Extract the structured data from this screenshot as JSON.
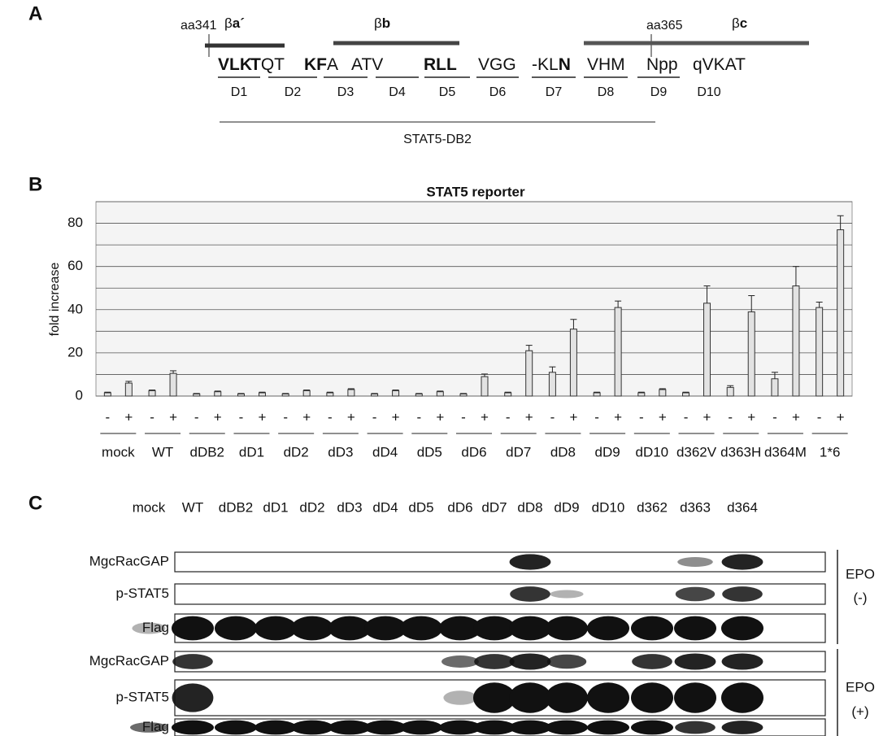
{
  "panel_a": {
    "label": "A",
    "start_marker": "aa341",
    "end_marker": "aa365",
    "strands": [
      {
        "greek": "β",
        "name": "a´"
      },
      {
        "greek": "β",
        "name": "b"
      },
      {
        "greek": "β",
        "name": "c"
      }
    ],
    "sequence": [
      {
        "segments": [
          {
            "text": "VLK",
            "bold": true
          }
        ]
      },
      {
        "segments": [
          {
            "text": "T",
            "bold": true
          },
          {
            "text": "QT",
            "bold": false
          }
        ]
      },
      {
        "segments": [
          {
            "text": "KF",
            "bold": true
          },
          {
            "text": "A",
            "bold": false
          }
        ]
      },
      {
        "segments": [
          {
            "text": "ATV",
            "bold": false
          }
        ]
      },
      {
        "segments": [
          {
            "text": "RLL",
            "bold": true
          }
        ]
      },
      {
        "segments": [
          {
            "text": "VGG",
            "bold": false
          }
        ]
      },
      {
        "segments": [
          {
            "text": "-KL",
            "bold": false
          },
          {
            "text": "N",
            "bold": true
          }
        ]
      },
      {
        "segments": [
          {
            "text": "VHM",
            "bold": false
          }
        ]
      },
      {
        "segments": [
          {
            "text": "Npp",
            "bold": false
          }
        ]
      },
      {
        "segments": [
          {
            "text": "qVKAT",
            "bold": false
          }
        ]
      }
    ],
    "domains": [
      "D1",
      "D2",
      "D3",
      "D4",
      "D5",
      "D6",
      "D7",
      "D8",
      "D9",
      "D10"
    ],
    "region": "STAT5-DB2"
  },
  "chart_data": {
    "type": "bar",
    "panel_label": "B",
    "title": "STAT5 reporter",
    "y_label": "fold increase",
    "categories": [
      "mock",
      "WT",
      "dDB2",
      "dD1",
      "dD2",
      "dD3",
      "dD4",
      "dD5",
      "dD6",
      "dD7",
      "dD8",
      "dD9",
      "dD10",
      "d362V",
      "d363H",
      "d364M",
      "1*6"
    ],
    "series": [
      {
        "name": "-",
        "color": "#e2e2e2",
        "values": [
          1.5,
          2.5,
          1,
          1,
          1,
          1.5,
          1,
          1,
          1,
          1.5,
          11,
          1.5,
          1.5,
          1.5,
          4,
          8,
          41
        ],
        "errors": [
          0.3,
          0.3,
          0.2,
          0.2,
          0.2,
          0.3,
          0.2,
          0.2,
          0.2,
          0.3,
          2.5,
          0.3,
          0.3,
          0.3,
          0.8,
          3,
          2.5
        ]
      },
      {
        "name": "+",
        "color": "#e2e2e2",
        "values": [
          6,
          10.5,
          2,
          1.5,
          2.5,
          3,
          2.5,
          2,
          9,
          21,
          31,
          41,
          3,
          43,
          39,
          51,
          77
        ],
        "errors": [
          0.8,
          1.2,
          0.3,
          0.3,
          0.3,
          0.4,
          0.3,
          0.3,
          1.2,
          2.5,
          4.5,
          3,
          0.4,
          8,
          7.5,
          9,
          6.5
        ]
      }
    ],
    "ylim": [
      0,
      90
    ],
    "yticks": [
      0,
      20,
      40,
      60,
      80
    ],
    "minor_yticks": [
      10,
      30,
      50,
      70,
      90
    ],
    "grid": true
  },
  "panel_c": {
    "label": "C",
    "lanes": [
      "mock",
      "WT",
      "dDB2",
      "dD1",
      "dD2",
      "dD3",
      "dD4",
      "dD5",
      "dD6",
      "dD7",
      "dD8",
      "dD9",
      "dD10",
      "d362",
      "d363",
      "d364"
    ],
    "rows": [
      "MgcRacGAP",
      "p-STAT5",
      "Flag",
      "MgcRacGAP",
      "p-STAT5",
      "Flag"
    ],
    "conditions": [
      {
        "name": "EPO",
        "sign": "(-)"
      },
      {
        "name": "EPO",
        "sign": "(+)"
      }
    ]
  }
}
